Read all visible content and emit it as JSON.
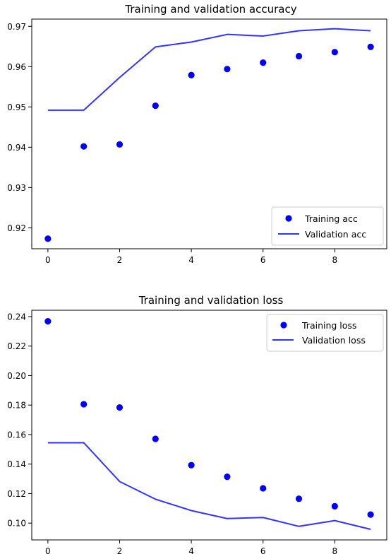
{
  "colors": {
    "series": "#0000ff",
    "line": "#3333ff"
  },
  "chart_data": [
    {
      "type": "line",
      "title": "Training and validation accuracy",
      "xlabel": "",
      "ylabel": "",
      "x": [
        0,
        1,
        2,
        3,
        4,
        5,
        6,
        7,
        8,
        9
      ],
      "xlim": [
        -0.45,
        9.45
      ],
      "ylim": [
        0.9148,
        0.9718
      ],
      "xticks": [
        0,
        2,
        4,
        6,
        8
      ],
      "yticks": [
        0.92,
        0.93,
        0.94,
        0.95,
        0.96,
        0.97
      ],
      "ytick_labels": [
        "0.92",
        "0.93",
        "0.94",
        "0.95",
        "0.96",
        "0.97"
      ],
      "legend_position": "lower-right",
      "series": [
        {
          "name": "Training acc",
          "style": "points",
          "values": [
            0.9173,
            0.9402,
            0.9407,
            0.9503,
            0.9579,
            0.9594,
            0.961,
            0.9626,
            0.9636,
            0.9649
          ]
        },
        {
          "name": "Validation acc",
          "style": "line",
          "values": [
            0.9492,
            0.9492,
            0.9573,
            0.9649,
            0.9661,
            0.968,
            0.9676,
            0.9689,
            0.9694,
            0.9689
          ]
        }
      ]
    },
    {
      "type": "line",
      "title": "Training and validation loss",
      "xlabel": "",
      "ylabel": "",
      "x": [
        0,
        1,
        2,
        3,
        4,
        5,
        6,
        7,
        8,
        9
      ],
      "xlim": [
        -0.45,
        9.45
      ],
      "ylim": [
        0.0886,
        0.2443
      ],
      "xticks": [
        0,
        2,
        4,
        6,
        8
      ],
      "yticks": [
        0.1,
        0.12,
        0.14,
        0.16,
        0.18,
        0.2,
        0.22,
        0.24
      ],
      "ytick_labels": [
        "0.10",
        "0.12",
        "0.14",
        "0.16",
        "0.18",
        "0.20",
        "0.22",
        "0.24"
      ],
      "legend_position": "upper-right",
      "series": [
        {
          "name": "Training loss",
          "style": "points",
          "values": [
            0.2368,
            0.1806,
            0.1784,
            0.1571,
            0.1393,
            0.1314,
            0.1236,
            0.1165,
            0.1114,
            0.1058
          ]
        },
        {
          "name": "Validation loss",
          "style": "line",
          "values": [
            0.1545,
            0.1545,
            0.1282,
            0.1162,
            0.1085,
            0.1031,
            0.1038,
            0.0978,
            0.1017,
            0.0958
          ]
        }
      ]
    }
  ]
}
